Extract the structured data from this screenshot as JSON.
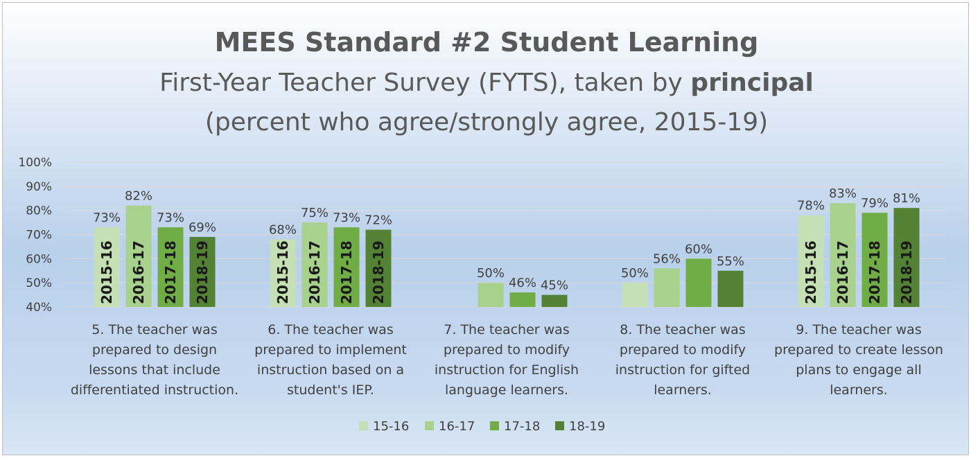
{
  "chart_data": {
    "type": "bar",
    "title": "MEES Standard #2 Student Learning",
    "subtitle_line1_prefix": "First-Year Teacher Survey (FYTS), taken by ",
    "subtitle_line1_bold": "principal",
    "subtitle_line2": "(percent who agree/strongly agree, 2015-19)",
    "xlabel": "",
    "ylabel": "",
    "ylim": [
      40,
      100
    ],
    "y_ticks": [
      "40%",
      "50%",
      "60%",
      "70%",
      "80%",
      "90%",
      "100%"
    ],
    "y_tick_values": [
      40,
      50,
      60,
      70,
      80,
      90,
      100
    ],
    "grid": true,
    "legend_position": "bottom",
    "categories": [
      [
        "5. The teacher was",
        "prepared to design",
        "lessons that include",
        "differentiated instruction."
      ],
      [
        "6. The teacher was",
        "prepared to implement",
        "instruction based on a",
        "student's IEP."
      ],
      [
        "7. The teacher was",
        "prepared to modify",
        "instruction for English",
        "language learners."
      ],
      [
        "8. The teacher was",
        "prepared to modify",
        "instruction for gifted",
        "learners."
      ],
      [
        "9. The teacher was",
        "prepared to create lesson",
        "plans to engage all",
        "learners."
      ]
    ],
    "series": [
      {
        "name": "15-16",
        "color": "#c5e0b4",
        "values": [
          73,
          68,
          null,
          50,
          78
        ],
        "labels": [
          "73%",
          "68%",
          "",
          "50%",
          "78%"
        ],
        "inbar": [
          "2015-16",
          "2015-16",
          "",
          "",
          "2015-16"
        ]
      },
      {
        "name": "16-17",
        "color": "#a9d18e",
        "values": [
          82,
          75,
          50,
          56,
          83
        ],
        "labels": [
          "82%",
          "75%",
          "50%",
          "56%",
          "83%"
        ],
        "inbar": [
          "2016-17",
          "2016-17",
          "",
          "",
          "2016-17"
        ]
      },
      {
        "name": "17-18",
        "color": "#70ad47",
        "values": [
          73,
          73,
          46,
          60,
          79
        ],
        "labels": [
          "73%",
          "73%",
          "46%",
          "60%",
          "79%"
        ],
        "inbar": [
          "2017-18",
          "2017-18",
          "",
          "",
          "2017-18"
        ]
      },
      {
        "name": "18-19",
        "color": "#548235",
        "values": [
          69,
          72,
          45,
          55,
          81
        ],
        "labels": [
          "69%",
          "72%",
          "45%",
          "55%",
          "81%"
        ],
        "inbar": [
          "2018-19",
          "2018-19",
          "",
          "",
          "2018-19"
        ]
      }
    ]
  }
}
